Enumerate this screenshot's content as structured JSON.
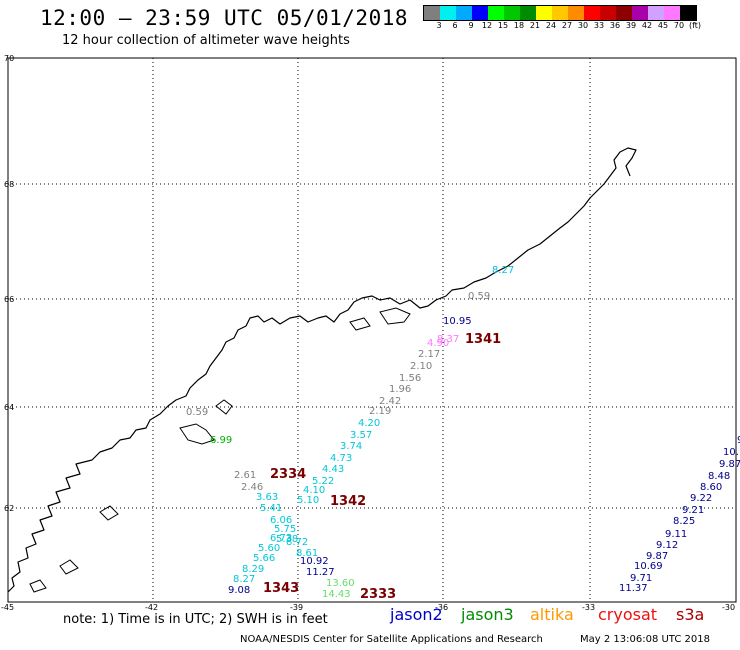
{
  "header": {
    "title": "12:00 – 23:59 UTC 05/01/2018",
    "subtitle": "12 hour collection of altimeter wave heights"
  },
  "colorbar": {
    "colors": [
      "#7f7f7f",
      "#00f0f0",
      "#00aaff",
      "#0000ff",
      "#00ff00",
      "#00c800",
      "#008c00",
      "#ffff00",
      "#ffc800",
      "#ff8c00",
      "#ff0000",
      "#c80000",
      "#8c0000",
      "#aa00aa",
      "#d2a0ff",
      "#ff78ff",
      "#000000"
    ],
    "labels": [
      "3",
      "6",
      "9",
      "12",
      "15",
      "18",
      "21",
      "24",
      "27",
      "30",
      "33",
      "36",
      "39",
      "42",
      "45",
      "70",
      "(ft)"
    ]
  },
  "map": {
    "lat_labels": [
      "70",
      "68",
      "66",
      "64",
      "62"
    ],
    "lon_labels": [
      "-45",
      "-42",
      "-39",
      "-36",
      "-33",
      "-30"
    ],
    "track_ids": [
      "1341",
      "2334",
      "1342",
      "1343",
      "2333"
    ],
    "tracks": [
      {
        "satellite": "jason2",
        "color": "#00008b",
        "points": [
          "10.95"
        ]
      },
      {
        "satellite": "s3a-pink",
        "color": "#ff78ff",
        "points": [
          "4.90",
          "8.37"
        ]
      },
      {
        "satellite": "jason3-cyan",
        "color": "#00bfd8",
        "points": [
          "8.27"
        ]
      },
      {
        "satellite": "gray",
        "color": "#808080",
        "points": [
          "0.59",
          "2.17",
          "2.10",
          "1.56",
          "1.96",
          "2.42",
          "2.19"
        ]
      },
      {
        "satellite": "cyan",
        "color": "#00c8d8",
        "points": [
          "4.20",
          "3.57",
          "3.74",
          "4.73",
          "4.43",
          "4.10",
          "5.22",
          "5.10"
        ]
      },
      {
        "satellite": "gray-west",
        "color": "#808080",
        "points": [
          "0.59",
          "2.61",
          "2.46"
        ]
      },
      {
        "satellite": "green",
        "color": "#00b400",
        "points": [
          "6.99"
        ]
      },
      {
        "satellite": "cyan-west",
        "color": "#00c8d8",
        "points": [
          "3.63",
          "5.41",
          "6.06",
          "5.75",
          "5.38",
          "6.73",
          "5.60",
          "5.66",
          "8.29",
          "8.27",
          "8.72",
          "8.61"
        ]
      },
      {
        "satellite": "blue-west",
        "color": "#00008b",
        "points": [
          "9.08",
          "10.92",
          "11.27"
        ]
      },
      {
        "satellite": "lightgreen",
        "color": "#66dd66",
        "points": [
          "13.60",
          "14.43"
        ]
      },
      {
        "satellite": "blue-east",
        "color": "#00008b",
        "points": [
          "9",
          "10.",
          "9.87",
          "8.48",
          "8.60",
          "9.22",
          "9.21",
          "8.25",
          "9.11",
          "9.12",
          "9.87",
          "10.69",
          "9.71",
          "11.37"
        ]
      }
    ]
  },
  "legend": {
    "note": "note: 1) Time is in UTC; 2) SWH is in feet",
    "satellites": [
      {
        "name": "jason2",
        "color": "#0000cc"
      },
      {
        "name": "jason3",
        "color": "#008c00"
      },
      {
        "name": "altika",
        "color": "#ff9900"
      },
      {
        "name": "cryosat",
        "color": "#ee1111"
      },
      {
        "name": "s3a",
        "color": "#aa0000"
      }
    ]
  },
  "footer": {
    "credit": "NOAA/NESDIS Center for Satellite Applications and Research",
    "timestamp": "May  2 13:06:08 UTC 2018"
  }
}
